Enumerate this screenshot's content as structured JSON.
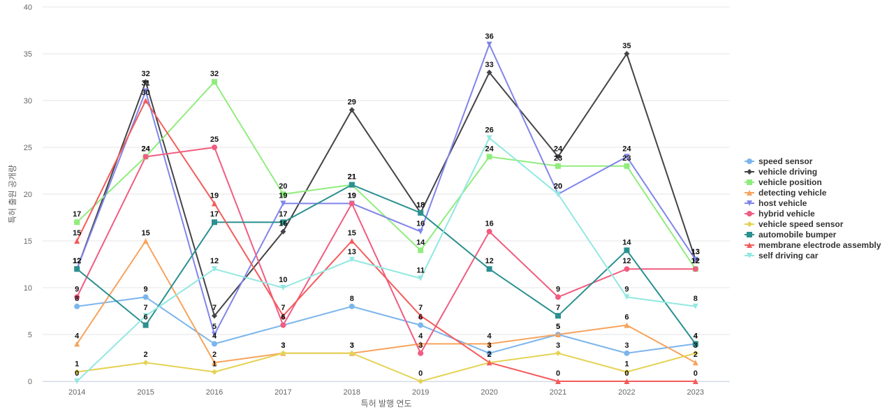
{
  "chart_data": {
    "type": "line",
    "xlabel": "특허 발행 연도",
    "ylabel": "특허 출원 공개량",
    "ylim": [
      0,
      40
    ],
    "yticks": [
      0,
      5,
      10,
      15,
      20,
      25,
      30,
      35,
      40
    ],
    "categories": [
      "2014",
      "2015",
      "2016",
      "2017",
      "2018",
      "2019",
      "2020",
      "2021",
      "2022",
      "2023"
    ],
    "grid": true,
    "legend_position": "right",
    "series": [
      {
        "name": "speed sensor",
        "color": "#7cb5ec",
        "marker": "circle",
        "values": [
          8,
          9,
          4,
          6,
          8,
          6,
          3,
          5,
          3,
          4
        ]
      },
      {
        "name": "vehicle driving",
        "color": "#434348",
        "marker": "diamond",
        "values": [
          12,
          32,
          7,
          16,
          29,
          18,
          33,
          24,
          35,
          13
        ]
      },
      {
        "name": "vehicle position",
        "color": "#90ed7d",
        "marker": "square",
        "values": [
          17,
          24,
          32,
          20,
          21,
          14,
          24,
          23,
          23,
          12
        ]
      },
      {
        "name": "detecting vehicle",
        "color": "#f7a35c",
        "marker": "triangle",
        "values": [
          4,
          15,
          2,
          3,
          3,
          4,
          4,
          5,
          6,
          2
        ]
      },
      {
        "name": "host vehicle",
        "color": "#8085e9",
        "marker": "triangle-down",
        "values": [
          12,
          31,
          5,
          19,
          19,
          16,
          36,
          20,
          24,
          13
        ]
      },
      {
        "name": "hybrid vehicle",
        "color": "#f15c80",
        "marker": "circle",
        "values": [
          9,
          24,
          25,
          6,
          19,
          3,
          16,
          9,
          12,
          12
        ]
      },
      {
        "name": "vehicle speed sensor",
        "color": "#e4d354",
        "marker": "diamond",
        "values": [
          1,
          2,
          1,
          3,
          3,
          0,
          2,
          3,
          1,
          3
        ]
      },
      {
        "name": "automobile bumper",
        "color": "#2b908f",
        "marker": "square",
        "values": [
          12,
          6,
          17,
          17,
          21,
          18,
          12,
          7,
          14,
          4
        ]
      },
      {
        "name": "membrane electrode assembly",
        "color": "#f45b5b",
        "marker": "triangle",
        "values": [
          15,
          30,
          19,
          7,
          15,
          7,
          2,
          0,
          0,
          0
        ]
      },
      {
        "name": "self driving car",
        "color": "#91e8e1",
        "marker": "triangle-down",
        "values": [
          0,
          7,
          12,
          10,
          13,
          11,
          26,
          20,
          9,
          8
        ]
      }
    ]
  }
}
